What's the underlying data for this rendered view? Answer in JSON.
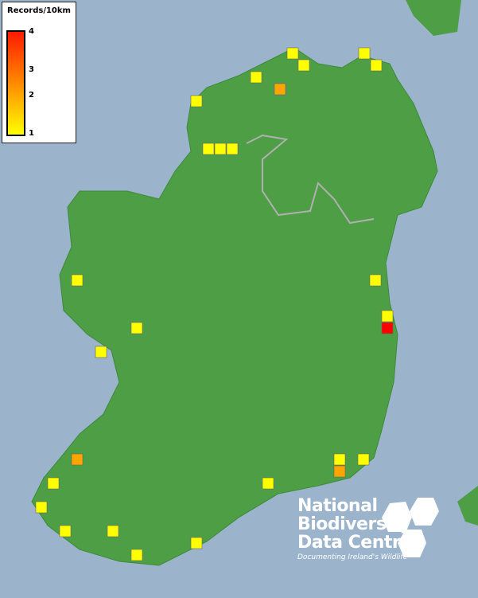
{
  "legend": {
    "title": "Records/10km",
    "ticks": [
      "4",
      "3",
      "2",
      "1"
    ],
    "scale_colors": {
      "1": "#ffff00",
      "2": "#ffa500",
      "3": "#ff7a00",
      "4": "#ff0000"
    }
  },
  "logo": {
    "line1": "National",
    "line2": "Biodiversity",
    "line3": "Data Centre",
    "tagline": "Documenting Ireland's Wildlife"
  },
  "colors": {
    "sea": "#9bb4cc",
    "land": "#4e9e46",
    "border": "#b0b0b0"
  },
  "records": [
    1,
    1,
    1,
    1,
    1,
    2,
    1,
    1,
    1,
    1,
    1,
    1,
    1,
    1,
    1,
    4,
    2,
    1,
    1,
    1,
    1,
    1,
    1,
    1,
    1,
    1,
    2
  ]
}
